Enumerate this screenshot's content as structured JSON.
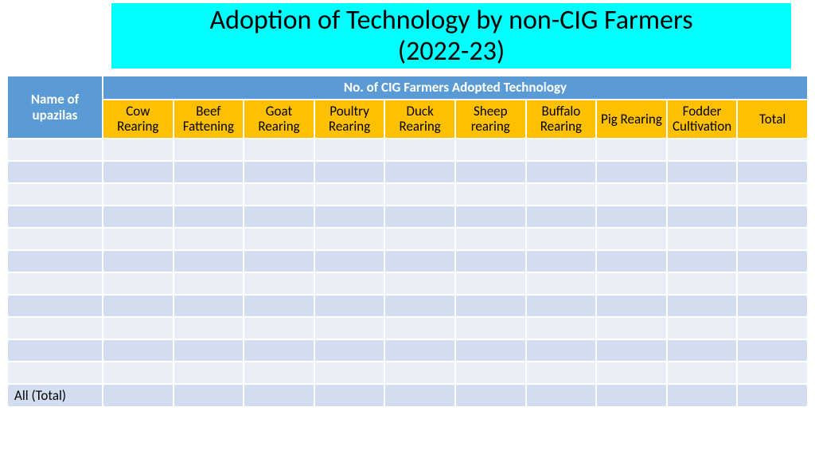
{
  "title": {
    "line1": "Adoption of Technology by non-CIG Farmers",
    "line2": "(2022-23)",
    "background_color": "#00ffff",
    "text_color": "#000000",
    "fontsize": 34
  },
  "table": {
    "header_blue_bg": "#5b9bd5",
    "header_blue_text": "#ffffff",
    "header_yellow_bg": "#ffc000",
    "header_yellow_text": "#000000",
    "row_even_bg": "#eaeff7",
    "row_odd_bg": "#d2deef",
    "border_color": "#ffffff",
    "name_header": "Name of upazilas",
    "group_header": "No. of CIG Farmers Adopted Technology",
    "columns": [
      "Cow Rearing",
      "Beef Fattening",
      "Goat Rearing",
      "Poultry Rearing",
      "Duck Rearing",
      "Sheep rearing",
      "Buffalo Rearing",
      "Pig Rearing",
      "Fodder Cultivation",
      "Total"
    ],
    "rows": [
      [
        "",
        "",
        "",
        "",
        "",
        "",
        "",
        "",
        "",
        "",
        ""
      ],
      [
        "",
        "",
        "",
        "",
        "",
        "",
        "",
        "",
        "",
        "",
        ""
      ],
      [
        "",
        "",
        "",
        "",
        "",
        "",
        "",
        "",
        "",
        "",
        ""
      ],
      [
        "",
        "",
        "",
        "",
        "",
        "",
        "",
        "",
        "",
        "",
        ""
      ],
      [
        "",
        "",
        "",
        "",
        "",
        "",
        "",
        "",
        "",
        "",
        ""
      ],
      [
        "",
        "",
        "",
        "",
        "",
        "",
        "",
        "",
        "",
        "",
        ""
      ],
      [
        "",
        "",
        "",
        "",
        "",
        "",
        "",
        "",
        "",
        "",
        ""
      ],
      [
        "",
        "",
        "",
        "",
        "",
        "",
        "",
        "",
        "",
        "",
        ""
      ],
      [
        "",
        "",
        "",
        "",
        "",
        "",
        "",
        "",
        "",
        "",
        ""
      ],
      [
        "",
        "",
        "",
        "",
        "",
        "",
        "",
        "",
        "",
        "",
        ""
      ],
      [
        "",
        "",
        "",
        "",
        "",
        "",
        "",
        "",
        "",
        "",
        ""
      ],
      [
        "All (Total)",
        "",
        "",
        "",
        "",
        "",
        "",
        "",
        "",
        "",
        ""
      ]
    ]
  }
}
